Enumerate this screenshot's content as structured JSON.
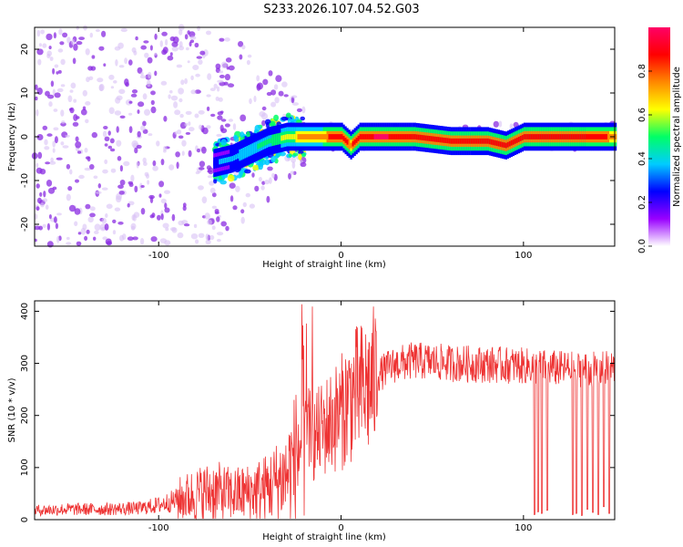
{
  "title": "S233.2026.107.04.52.G03",
  "chart_data": [
    {
      "type": "heatmap",
      "name": "spectrogram",
      "xlabel": "Height of straight line (km)",
      "ylabel": "Frequency (Hz)",
      "xlim": [
        -168,
        150
      ],
      "ylim": [
        -25,
        25
      ],
      "xticks": [
        -100,
        0,
        100
      ],
      "yticks": [
        20,
        10,
        0,
        -10,
        -20
      ],
      "colorbar": {
        "label": "Normalized spectral amplitude",
        "range": [
          0,
          1
        ],
        "ticks": [
          "0.0",
          "0.2",
          "0.4",
          "0.6",
          "0.8"
        ],
        "tick_values": [
          0.0,
          0.2,
          0.4,
          0.6,
          0.8
        ],
        "colors": [
          "#ffffff",
          "#9900ff",
          "#0000ff",
          "#00ccff",
          "#00ff66",
          "#ffff00",
          "#ff8800",
          "#ff0000",
          "#ff0066"
        ]
      },
      "ridge": {
        "x": [
          -70,
          -60,
          -50,
          -40,
          -30,
          -20,
          -10,
          0,
          5,
          10,
          20,
          40,
          60,
          80,
          90,
          100,
          110,
          130,
          150
        ],
        "y": [
          -6,
          -5,
          -3,
          -1,
          0,
          0,
          0,
          0,
          -2,
          0,
          0,
          0,
          -1,
          -1,
          -2,
          0,
          0,
          0,
          0
        ],
        "amplitude": [
          0.3,
          0.35,
          0.4,
          0.5,
          0.6,
          0.75,
          0.8,
          0.85,
          0.8,
          0.9,
          0.95,
          0.9,
          0.9,
          0.9,
          0.9,
          0.85,
          0.85,
          0.85,
          0.8
        ]
      }
    },
    {
      "type": "line",
      "name": "snr",
      "xlabel": "Height of straight line (km)",
      "ylabel": "SNR (10 * v/v)",
      "xlim": [
        -168,
        150
      ],
      "ylim": [
        0,
        420
      ],
      "xticks": [
        -100,
        0,
        100
      ],
      "yticks": [
        0,
        100,
        200,
        300,
        400
      ],
      "color": "#ee3333",
      "x": [
        -168,
        -150,
        -130,
        -110,
        -100,
        -90,
        -80,
        -70,
        -60,
        -50,
        -40,
        -30,
        -25,
        -20,
        -15,
        -10,
        -5,
        0,
        5,
        10,
        15,
        20,
        25,
        30,
        40,
        50,
        60,
        80,
        100,
        120,
        140,
        150
      ],
      "y": [
        18,
        20,
        20,
        22,
        28,
        38,
        48,
        55,
        48,
        52,
        62,
        85,
        120,
        170,
        155,
        175,
        190,
        205,
        235,
        245,
        255,
        275,
        290,
        298,
        305,
        303,
        300,
        298,
        295,
        290,
        288,
        292
      ],
      "dropouts": [
        {
          "x": 106,
          "y": 10
        },
        {
          "x": 108,
          "y": 15
        },
        {
          "x": 110,
          "y": 12
        },
        {
          "x": 113,
          "y": 18
        },
        {
          "x": 127,
          "y": 10
        },
        {
          "x": 129,
          "y": 12
        },
        {
          "x": 132,
          "y": 8
        },
        {
          "x": 135,
          "y": 20
        },
        {
          "x": 138,
          "y": 14
        },
        {
          "x": 141,
          "y": 10
        },
        {
          "x": 144,
          "y": 25
        },
        {
          "x": 147,
          "y": 12
        }
      ]
    }
  ]
}
